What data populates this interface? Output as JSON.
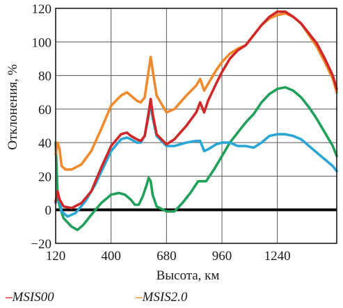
{
  "chart_data": {
    "type": "line",
    "xlabel": "Высота, км",
    "ylabel": "Отклонения, %",
    "xlim": [
      120,
      1540
    ],
    "ylim": [
      -20,
      120
    ],
    "xticks": [
      120,
      400,
      680,
      960,
      1240
    ],
    "yticks": [
      -20,
      0,
      20,
      40,
      60,
      80,
      100,
      120
    ],
    "grid": true,
    "zero_line": true,
    "legend": "bottom",
    "series": [
      {
        "name": "MSIS00",
        "legend_label": "–MSIS00",
        "color": "#d02828",
        "points": [
          [
            120,
            5
          ],
          [
            130,
            11
          ],
          [
            140,
            6
          ],
          [
            160,
            2
          ],
          [
            200,
            1
          ],
          [
            250,
            4
          ],
          [
            300,
            11
          ],
          [
            350,
            25
          ],
          [
            400,
            38
          ],
          [
            450,
            45
          ],
          [
            480,
            46
          ],
          [
            500,
            44
          ],
          [
            530,
            42
          ],
          [
            550,
            41
          ],
          [
            570,
            44
          ],
          [
            590,
            58
          ],
          [
            600,
            66
          ],
          [
            610,
            57
          ],
          [
            630,
            45
          ],
          [
            680,
            39
          ],
          [
            720,
            42
          ],
          [
            780,
            50
          ],
          [
            830,
            58
          ],
          [
            850,
            64
          ],
          [
            870,
            58
          ],
          [
            890,
            65
          ],
          [
            930,
            75
          ],
          [
            960,
            82
          ],
          [
            1000,
            90
          ],
          [
            1040,
            95
          ],
          [
            1080,
            98
          ],
          [
            1120,
            104
          ],
          [
            1160,
            110
          ],
          [
            1200,
            115
          ],
          [
            1240,
            118
          ],
          [
            1280,
            118
          ],
          [
            1320,
            115
          ],
          [
            1360,
            111
          ],
          [
            1400,
            105
          ],
          [
            1440,
            99
          ],
          [
            1480,
            90
          ],
          [
            1520,
            80
          ],
          [
            1540,
            72
          ]
        ]
      },
      {
        "name": "MSIS2.0",
        "legend_label": "–MSIS2.0",
        "color": "#f08a2c",
        "points": [
          [
            120,
            33
          ],
          [
            130,
            40
          ],
          [
            140,
            36
          ],
          [
            150,
            26
          ],
          [
            170,
            24
          ],
          [
            200,
            24
          ],
          [
            250,
            27
          ],
          [
            300,
            35
          ],
          [
            350,
            48
          ],
          [
            400,
            62
          ],
          [
            450,
            68
          ],
          [
            480,
            70
          ],
          [
            500,
            68
          ],
          [
            530,
            65
          ],
          [
            550,
            64
          ],
          [
            570,
            67
          ],
          [
            590,
            83
          ],
          [
            600,
            91
          ],
          [
            610,
            83
          ],
          [
            630,
            68
          ],
          [
            680,
            58
          ],
          [
            720,
            60
          ],
          [
            780,
            68
          ],
          [
            830,
            74
          ],
          [
            850,
            78
          ],
          [
            870,
            71
          ],
          [
            890,
            75
          ],
          [
            930,
            83
          ],
          [
            960,
            88
          ],
          [
            1000,
            93
          ],
          [
            1040,
            96
          ],
          [
            1080,
            98
          ],
          [
            1120,
            104
          ],
          [
            1160,
            110
          ],
          [
            1200,
            114
          ],
          [
            1240,
            116
          ],
          [
            1280,
            117
          ],
          [
            1320,
            115
          ],
          [
            1360,
            111
          ],
          [
            1400,
            104
          ],
          [
            1440,
            97
          ],
          [
            1480,
            88
          ],
          [
            1520,
            78
          ],
          [
            1540,
            70
          ]
        ]
      },
      {
        "name": "blue",
        "color": "#2aa6d6",
        "points": [
          [
            120,
            4
          ],
          [
            130,
            10
          ],
          [
            140,
            5
          ],
          [
            150,
            -1
          ],
          [
            180,
            -4
          ],
          [
            220,
            -2
          ],
          [
            270,
            5
          ],
          [
            320,
            15
          ],
          [
            360,
            25
          ],
          [
            400,
            35
          ],
          [
            450,
            42
          ],
          [
            480,
            43
          ],
          [
            500,
            42
          ],
          [
            530,
            40
          ],
          [
            550,
            40
          ],
          [
            570,
            44
          ],
          [
            590,
            56
          ],
          [
            600,
            64
          ],
          [
            610,
            55
          ],
          [
            630,
            44
          ],
          [
            680,
            38
          ],
          [
            720,
            38
          ],
          [
            780,
            40
          ],
          [
            830,
            41
          ],
          [
            850,
            41
          ],
          [
            870,
            35
          ],
          [
            890,
            36
          ],
          [
            930,
            39
          ],
          [
            960,
            40
          ],
          [
            1000,
            40
          ],
          [
            1040,
            38
          ],
          [
            1080,
            38
          ],
          [
            1120,
            37
          ],
          [
            1160,
            40
          ],
          [
            1200,
            44
          ],
          [
            1240,
            45
          ],
          [
            1280,
            45
          ],
          [
            1320,
            44
          ],
          [
            1360,
            42
          ],
          [
            1400,
            38
          ],
          [
            1440,
            34
          ],
          [
            1480,
            30
          ],
          [
            1520,
            26
          ],
          [
            1540,
            23
          ]
        ]
      },
      {
        "name": "green",
        "color": "#21a05a",
        "points": [
          [
            120,
            40
          ],
          [
            125,
            25
          ],
          [
            130,
            8
          ],
          [
            140,
            2
          ],
          [
            160,
            -5
          ],
          [
            200,
            -10
          ],
          [
            230,
            -12
          ],
          [
            260,
            -9
          ],
          [
            300,
            -3
          ],
          [
            350,
            4
          ],
          [
            400,
            9
          ],
          [
            440,
            10
          ],
          [
            470,
            9
          ],
          [
            500,
            6
          ],
          [
            520,
            3
          ],
          [
            540,
            3
          ],
          [
            560,
            8
          ],
          [
            580,
            15
          ],
          [
            590,
            19
          ],
          [
            600,
            17
          ],
          [
            610,
            9
          ],
          [
            630,
            2
          ],
          [
            680,
            -1
          ],
          [
            720,
            -1
          ],
          [
            760,
            4
          ],
          [
            800,
            10
          ],
          [
            840,
            17
          ],
          [
            860,
            17
          ],
          [
            880,
            17
          ],
          [
            920,
            24
          ],
          [
            960,
            32
          ],
          [
            1000,
            40
          ],
          [
            1040,
            46
          ],
          [
            1080,
            52
          ],
          [
            1120,
            57
          ],
          [
            1160,
            64
          ],
          [
            1200,
            69
          ],
          [
            1240,
            72
          ],
          [
            1280,
            73
          ],
          [
            1320,
            71
          ],
          [
            1360,
            67
          ],
          [
            1400,
            61
          ],
          [
            1440,
            54
          ],
          [
            1480,
            46
          ],
          [
            1520,
            38
          ],
          [
            1540,
            32
          ]
        ]
      }
    ]
  }
}
